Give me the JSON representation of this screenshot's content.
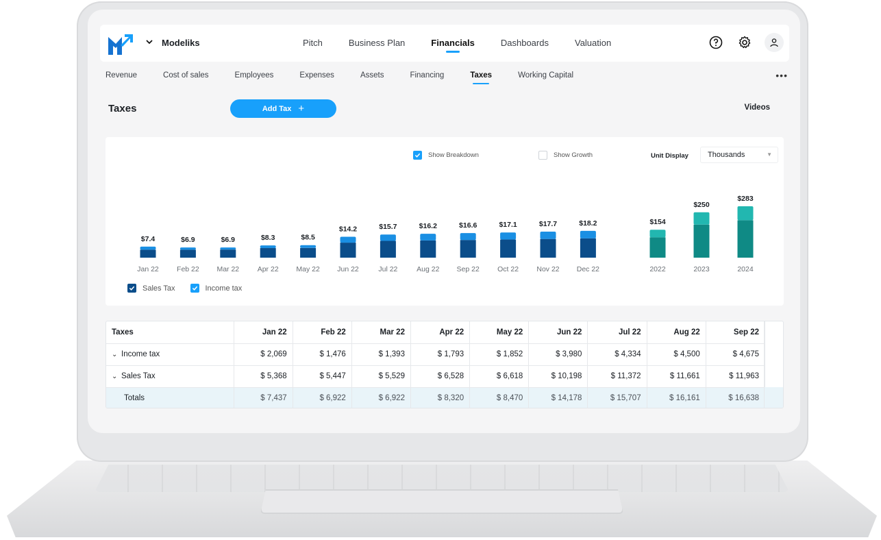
{
  "app": {
    "company": "Modeliks"
  },
  "main_nav": [
    {
      "label": "Pitch",
      "active": false
    },
    {
      "label": "Business Plan",
      "active": false
    },
    {
      "label": "Financials",
      "active": true
    },
    {
      "label": "Dashboards",
      "active": false
    },
    {
      "label": "Valuation",
      "active": false
    }
  ],
  "sub_nav": [
    {
      "label": "Revenue",
      "active": false
    },
    {
      "label": "Cost of sales",
      "active": false
    },
    {
      "label": "Employees",
      "active": false
    },
    {
      "label": "Expenses",
      "active": false
    },
    {
      "label": "Assets",
      "active": false
    },
    {
      "label": "Financing",
      "active": false
    },
    {
      "label": "Taxes",
      "active": true
    },
    {
      "label": "Working Capital",
      "active": false
    }
  ],
  "page": {
    "title": "Taxes",
    "add_button": "Add Tax",
    "videos": "Videos"
  },
  "options": {
    "show_breakdown": {
      "label": "Show Breakdown",
      "checked": true
    },
    "show_growth": {
      "label": "Show Growth",
      "checked": false
    },
    "unit_display_label": "Unit Display",
    "unit_display_value": "Thousands"
  },
  "colors": {
    "accent": "#18a0fb",
    "sales_tax": "#0b4d8a",
    "income_tax": "#1a8fe3",
    "year_base": "#0f8a85",
    "year_top": "#22b7b0"
  },
  "chart_data": {
    "type": "bar",
    "stacked": true,
    "monthly": {
      "categories": [
        "Jan 22",
        "Feb 22",
        "Mar 22",
        "Apr 22",
        "May 22",
        "Jun 22",
        "Jul 22",
        "Aug 22",
        "Sep 22",
        "Oct 22",
        "Nov 22",
        "Dec 22"
      ],
      "totals_labels": [
        "$7.4",
        "$6.9",
        "$6.9",
        "$8.3",
        "$8.5",
        "$14.2",
        "$15.7",
        "$16.2",
        "$16.6",
        "$17.1",
        "$17.7",
        "$18.2"
      ],
      "series": [
        {
          "name": "Sales Tax",
          "values": [
            5.4,
            5.4,
            5.5,
            6.5,
            6.6,
            10.2,
            11.4,
            11.7,
            12.0,
            12.3,
            12.7,
            13.1
          ]
        },
        {
          "name": "Income tax",
          "values": [
            2.1,
            1.5,
            1.4,
            1.8,
            1.9,
            4.0,
            4.3,
            4.5,
            4.7,
            4.8,
            5.0,
            5.1
          ]
        }
      ]
    },
    "yearly": {
      "categories": [
        "2022",
        "2023",
        "2024"
      ],
      "totals_labels": [
        "$154",
        "$250",
        "$283"
      ],
      "series": [
        {
          "name": "Sales Tax",
          "values": [
            112,
            182,
            206
          ]
        },
        {
          "name": "Income tax",
          "values": [
            42,
            68,
            77
          ]
        }
      ]
    },
    "legend": [
      {
        "name": "Sales Tax",
        "checked": true
      },
      {
        "name": "Income tax",
        "checked": true
      }
    ],
    "legend_position": "bottom-left",
    "grid": false
  },
  "table": {
    "header": "Taxes",
    "columns": [
      "Jan 22",
      "Feb 22",
      "Mar 22",
      "Apr 22",
      "May 22",
      "Jun 22",
      "Jul 22",
      "Aug 22",
      "Sep 22"
    ],
    "rows": [
      {
        "label": "Income tax",
        "values": [
          "$ 2,069",
          "$ 1,476",
          "$ 1,393",
          "$ 1,793",
          "$ 1,852",
          "$ 3,980",
          "$ 4,334",
          "$ 4,500",
          "$ 4,675"
        ]
      },
      {
        "label": "Sales Tax",
        "values": [
          "$ 5,368",
          "$ 5,447",
          "$ 5,529",
          "$ 6,528",
          "$ 6,618",
          "$ 10,198",
          "$ 11,372",
          "$ 11,661",
          "$ 11,963"
        ]
      }
    ],
    "totals": {
      "label": "Totals",
      "values": [
        "$ 7,437",
        "$ 6,922",
        "$ 6,922",
        "$ 8,320",
        "$ 8,470",
        "$ 14,178",
        "$ 15,707",
        "$ 16,161",
        "$ 16,638"
      ]
    }
  }
}
